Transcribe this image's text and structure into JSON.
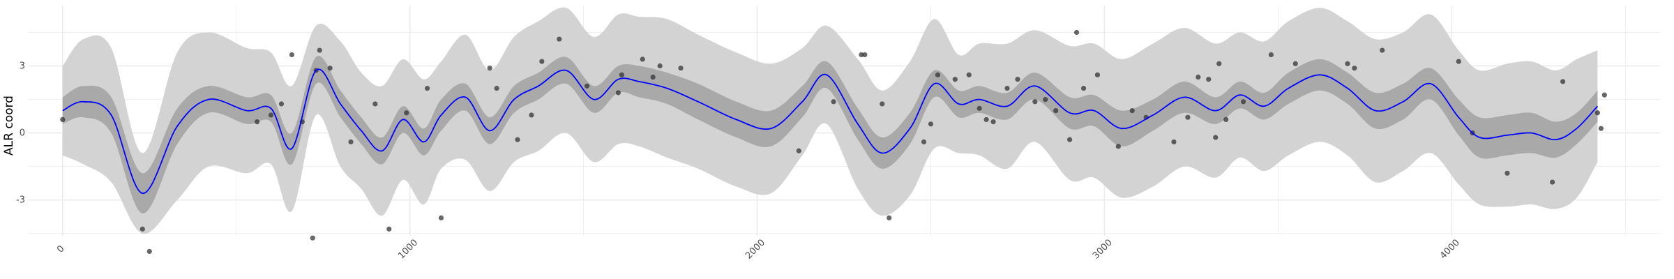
{
  "chart_data": {
    "type": "line",
    "title": "",
    "xlabel": "",
    "ylabel": "ALR coord",
    "xlim": [
      -100,
      4600
    ],
    "ylim": [
      -4.6,
      5.7
    ],
    "x_ticks": [
      0,
      1000,
      2000,
      3000,
      4000
    ],
    "x_tick_labels": [
      "0",
      "1000",
      "2000",
      "3000",
      "4000"
    ],
    "y_ticks": [
      -3,
      0,
      3
    ],
    "y_tick_labels": [
      "-3",
      "0",
      "3"
    ],
    "grid": true,
    "series": [
      {
        "kind": "fit",
        "x": [
          0,
          60,
          140,
          230,
          330,
          420,
          530,
          600,
          660,
          730,
          800,
          860,
          920,
          980,
          1040,
          1090,
          1160,
          1230,
          1300,
          1370,
          1450,
          1530,
          1600,
          1660,
          1740,
          1830,
          1940,
          2040,
          2130,
          2200,
          2290,
          2360,
          2440,
          2510,
          2580,
          2640,
          2720,
          2800,
          2900,
          2970,
          3050,
          3140,
          3230,
          3320,
          3390,
          3460,
          3530,
          3620,
          3700,
          3780,
          3860,
          3940,
          4020,
          4080,
          4160,
          4230,
          4300,
          4360,
          4420
        ],
        "values": [
          1.0,
          1.4,
          0.8,
          -2.7,
          0.3,
          1.5,
          1.0,
          1.1,
          -0.7,
          2.8,
          1.3,
          0.1,
          -0.8,
          0.6,
          -0.4,
          0.8,
          1.6,
          0.1,
          1.5,
          2.1,
          2.8,
          1.5,
          2.4,
          2.3,
          2.0,
          1.4,
          0.6,
          0.2,
          1.4,
          2.6,
          0.4,
          -0.9,
          0.2,
          2.2,
          1.3,
          1.5,
          1.2,
          2.1,
          0.9,
          1.0,
          0.2,
          0.8,
          1.6,
          1.0,
          1.7,
          1.2,
          2.0,
          2.6,
          2.0,
          1.0,
          1.4,
          2.2,
          0.7,
          -0.2,
          -0.1,
          0.0,
          -0.3,
          0.2,
          1.2
        ],
        "inner_half_width": [
          0.6,
          0.7,
          0.8,
          0.9,
          0.8,
          0.6,
          0.6,
          0.6,
          0.7,
          0.6,
          0.6,
          0.6,
          0.6,
          0.6,
          0.6,
          0.7,
          0.6,
          0.6,
          0.6,
          0.6,
          0.6,
          0.6,
          0.6,
          0.7,
          0.7,
          0.8,
          0.8,
          0.8,
          0.7,
          0.6,
          0.7,
          0.7,
          0.7,
          0.6,
          0.6,
          0.6,
          0.6,
          0.6,
          0.7,
          0.7,
          0.8,
          0.7,
          0.7,
          0.6,
          0.6,
          0.6,
          0.7,
          0.7,
          0.7,
          0.8,
          0.8,
          0.7,
          0.8,
          0.9,
          0.9,
          0.9,
          0.8,
          0.7,
          0.7
        ],
        "outer_half_width": [
          2.0,
          2.8,
          3.0,
          1.8,
          3.3,
          3.0,
          2.8,
          2.5,
          2.8,
          2.0,
          2.8,
          2.6,
          2.9,
          2.7,
          2.8,
          2.4,
          2.8,
          2.7,
          2.8,
          2.9,
          2.8,
          2.8,
          2.9,
          2.9,
          3.1,
          3.0,
          3.0,
          2.9,
          2.4,
          2.2,
          2.9,
          2.8,
          3.0,
          2.9,
          2.2,
          2.5,
          2.8,
          2.5,
          3.0,
          3.0,
          3.1,
          3.2,
          3.1,
          3.0,
          2.8,
          2.9,
          3.0,
          3.0,
          3.0,
          3.2,
          3.1,
          3.1,
          3.0,
          3.0,
          3.2,
          3.2,
          3.1,
          3.1,
          2.5
        ],
        "color": "#0000ff"
      },
      {
        "kind": "points",
        "x": [
          0,
          230,
          250,
          560,
          600,
          630,
          660,
          690,
          720,
          730,
          740,
          770,
          830,
          900,
          940,
          990,
          1050,
          1090,
          1230,
          1250,
          1310,
          1350,
          1380,
          1430,
          1510,
          1600,
          1610,
          1670,
          1700,
          1720,
          1780,
          2120,
          2220,
          2300,
          2310,
          2360,
          2380,
          2480,
          2500,
          2520,
          2570,
          2610,
          2640,
          2660,
          2680,
          2720,
          2750,
          2800,
          2830,
          2860,
          2900,
          2920,
          2940,
          2980,
          3040,
          3080,
          3120,
          3200,
          3240,
          3270,
          3300,
          3320,
          3330,
          3350,
          3400,
          3480,
          3550,
          3700,
          3720,
          3800,
          4020,
          4060,
          4160,
          4290,
          4320,
          4420,
          4430,
          4440
        ],
        "values": [
          0.6,
          -4.3,
          -5.3,
          0.5,
          0.8,
          1.3,
          3.5,
          0.5,
          -4.7,
          2.8,
          3.7,
          2.9,
          -0.4,
          1.3,
          -4.3,
          0.9,
          2.0,
          -3.8,
          2.9,
          2.0,
          -0.3,
          0.8,
          3.2,
          4.2,
          2.1,
          1.8,
          2.6,
          3.3,
          2.5,
          3.0,
          2.9,
          -0.8,
          1.4,
          3.5,
          3.5,
          1.3,
          -3.8,
          -0.4,
          0.4,
          2.6,
          2.4,
          2.6,
          1.1,
          0.6,
          0.5,
          2.0,
          2.4,
          1.4,
          1.5,
          1.0,
          -0.3,
          4.5,
          2.0,
          2.6,
          -0.6,
          1.0,
          0.7,
          -0.4,
          0.7,
          2.5,
          2.4,
          -0.2,
          3.1,
          0.6,
          1.4,
          3.5,
          3.1,
          3.1,
          2.9,
          3.7,
          3.2,
          0.0,
          -1.8,
          -2.2,
          2.3,
          0.9,
          0.2,
          1.7
        ],
        "color": "#000000"
      }
    ],
    "colors": {
      "outer_band": "#d3d3d3",
      "inner_band": "#a9a9a9",
      "line": "#0000ff",
      "points": "#333333",
      "grid": "#ebebeb"
    }
  }
}
